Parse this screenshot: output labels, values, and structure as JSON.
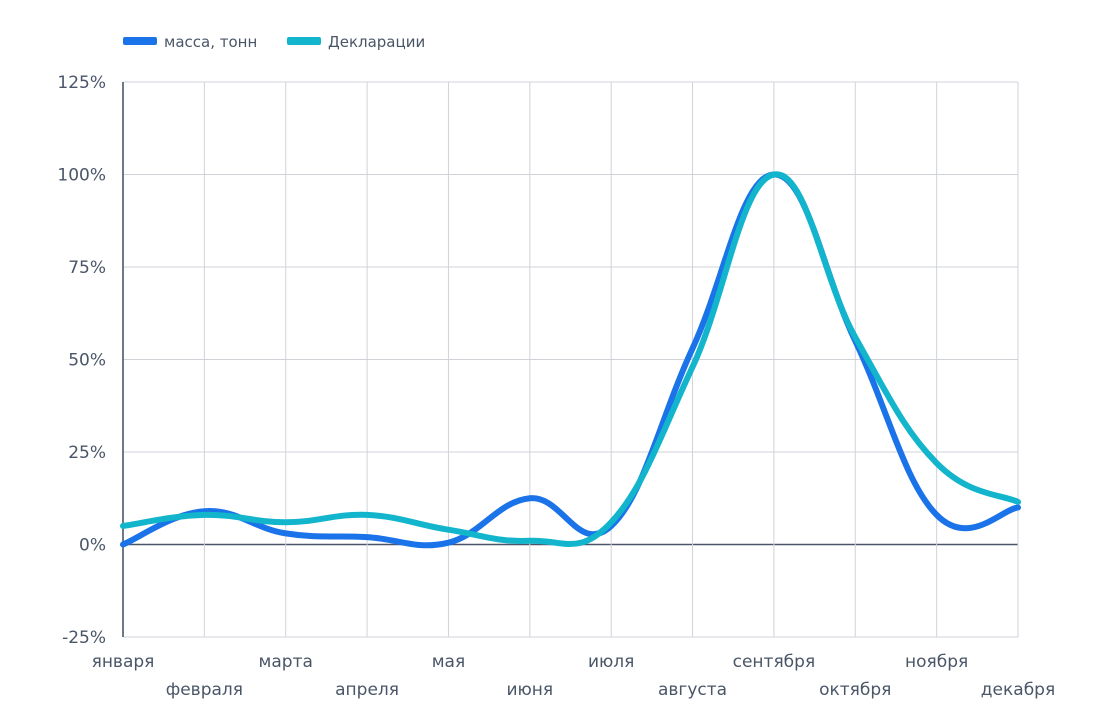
{
  "chart_data": {
    "type": "line",
    "title": "",
    "xlabel": "",
    "ylabel": "",
    "categories": [
      "января",
      "февраля",
      "марта",
      "апреля",
      "мая",
      "июня",
      "июля",
      "августа",
      "сентября",
      "октября",
      "ноября",
      "декабря"
    ],
    "y_tick_labels": [
      "125%",
      "100%",
      "75%",
      "50%",
      "25%",
      "0%",
      "-25%"
    ],
    "y_ticks": [
      125,
      100,
      75,
      50,
      25,
      0,
      -25
    ],
    "ylim": [
      -25,
      125
    ],
    "grid": true,
    "legend_position": "top-left",
    "series": [
      {
        "name": "масса, тонн",
        "color": "#1a73e8",
        "values": [
          0,
          9,
          3,
          2,
          0.5,
          12.5,
          5,
          53,
          100,
          55,
          8,
          10
        ]
      },
      {
        "name": "Декларации",
        "color": "#12b5cb",
        "values": [
          5,
          8,
          6,
          8,
          4,
          1,
          6,
          48,
          100,
          56,
          22,
          11.5
        ]
      }
    ]
  }
}
